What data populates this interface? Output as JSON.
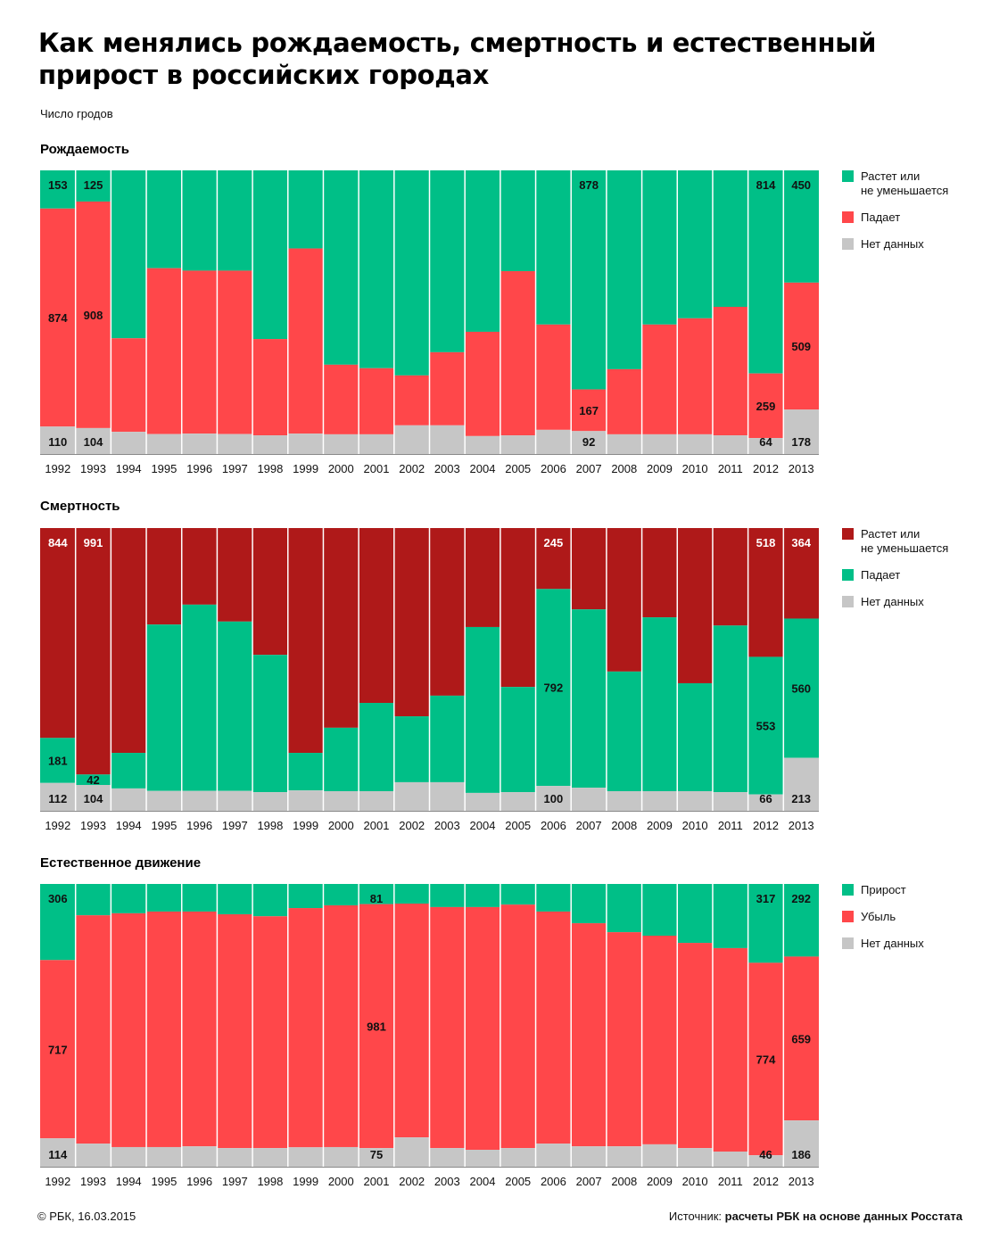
{
  "title": "Как менялись рождаемость, смертность и естественный прирост в российских городах",
  "title_lines": [
    "Как менялись рождаемость, смертность и естественный",
    "прирост в российских городах"
  ],
  "subtitle": "Число гродов",
  "footer": {
    "copyright": "© РБК, 16.03.2015",
    "source_label": "Источник: ",
    "source_text": "расчеты РБК на основе данных Росстата"
  },
  "colors": {
    "green": "#00BF87",
    "red": "#FF474A",
    "darkred": "#AF1919",
    "gray": "#C6C6C6"
  },
  "chart_data": [
    {
      "type": "bar",
      "stacked": true,
      "title": "Рождаемость",
      "xlabel": "",
      "ylabel": "Число гродов",
      "ylim": [
        0,
        1137
      ],
      "legend_position": "right",
      "categories": [
        "1992",
        "1993",
        "1994",
        "1995",
        "1996",
        "1997",
        "1998",
        "1999",
        "2000",
        "2001",
        "2002",
        "2003",
        "2004",
        "2005",
        "2006",
        "2007",
        "2008",
        "2009",
        "2010",
        "2011",
        "2012",
        "2013"
      ],
      "series": [
        {
          "name": "Растет или не уменьшается",
          "color": "green",
          "position": "top",
          "values": [
            153,
            125,
            673,
            392,
            402,
            402,
            676,
            313,
            779,
            793,
            822,
            729,
            647,
            404,
            618,
            878,
            797,
            618,
            593,
            547,
            814,
            450
          ],
          "labeled": [
            true,
            true,
            false,
            false,
            false,
            false,
            false,
            false,
            false,
            false,
            false,
            false,
            false,
            false,
            false,
            true,
            false,
            false,
            false,
            false,
            true,
            true
          ]
        },
        {
          "name": "Падает",
          "color": "red",
          "position": "middle",
          "values": [
            874,
            908,
            375,
            665,
            653,
            655,
            386,
            742,
            279,
            265,
            200,
            293,
            418,
            658,
            422,
            167,
            261,
            440,
            465,
            515,
            259,
            509
          ],
          "labeled": [
            true,
            true,
            false,
            false,
            false,
            false,
            false,
            false,
            false,
            false,
            false,
            false,
            false,
            false,
            false,
            true,
            false,
            false,
            false,
            false,
            true,
            true
          ]
        },
        {
          "name": "Нет данных",
          "color": "gray",
          "position": "bottom",
          "values": [
            110,
            104,
            89,
            80,
            82,
            80,
            75,
            82,
            79,
            79,
            115,
            115,
            72,
            75,
            97,
            92,
            79,
            79,
            79,
            75,
            64,
            178
          ],
          "labeled": [
            true,
            true,
            false,
            false,
            false,
            false,
            false,
            false,
            false,
            false,
            false,
            false,
            false,
            false,
            false,
            true,
            false,
            false,
            false,
            false,
            true,
            true
          ]
        }
      ],
      "legend": [
        {
          "lines": [
            "Растет или",
            "не уменьшается"
          ],
          "color": "green"
        },
        {
          "lines": [
            "Падает"
          ],
          "color": "red"
        },
        {
          "lines": [
            "Нет данных"
          ],
          "color": "gray"
        }
      ]
    },
    {
      "type": "bar",
      "stacked": true,
      "title": "Смертность",
      "xlabel": "",
      "ylabel": "Число гродов",
      "ylim": [
        0,
        1137
      ],
      "legend_position": "right",
      "categories": [
        "1992",
        "1993",
        "1994",
        "1995",
        "1996",
        "1997",
        "1998",
        "1999",
        "2000",
        "2001",
        "2002",
        "2003",
        "2004",
        "2005",
        "2006",
        "2007",
        "2008",
        "2009",
        "2010",
        "2011",
        "2012",
        "2013"
      ],
      "series": [
        {
          "name": "Растет или не уменьшается",
          "color": "darkred",
          "position": "top",
          "label_color": "#ffffff",
          "values": [
            844,
            991,
            904,
            388,
            308,
            376,
            510,
            904,
            803,
            703,
            757,
            674,
            398,
            639,
            245,
            327,
            577,
            359,
            624,
            392,
            518,
            364
          ],
          "labeled": [
            true,
            true,
            false,
            false,
            false,
            false,
            false,
            false,
            false,
            false,
            false,
            false,
            false,
            false,
            true,
            false,
            false,
            false,
            false,
            false,
            true,
            true
          ]
        },
        {
          "name": "Падает",
          "color": "green",
          "position": "middle",
          "values": [
            181,
            42,
            143,
            669,
            749,
            681,
            552,
            151,
            255,
            355,
            265,
            348,
            667,
            423,
            792,
            717,
            481,
            699,
            434,
            670,
            553,
            560
          ],
          "labeled": [
            true,
            true,
            false,
            false,
            false,
            false,
            false,
            false,
            false,
            false,
            false,
            false,
            false,
            false,
            true,
            false,
            false,
            false,
            false,
            false,
            true,
            true
          ]
        },
        {
          "name": "Нет данных",
          "color": "gray",
          "position": "bottom",
          "values": [
            112,
            104,
            90,
            80,
            80,
            80,
            75,
            82,
            79,
            79,
            115,
            115,
            72,
            75,
            100,
            93,
            79,
            79,
            79,
            75,
            66,
            213
          ],
          "labeled": [
            true,
            true,
            false,
            false,
            false,
            false,
            false,
            false,
            false,
            false,
            false,
            false,
            false,
            false,
            true,
            false,
            false,
            false,
            false,
            false,
            true,
            true
          ]
        }
      ],
      "legend": [
        {
          "lines": [
            "Растет или",
            "не уменьшается"
          ],
          "color": "darkred"
        },
        {
          "lines": [
            "Падает"
          ],
          "color": "green"
        },
        {
          "lines": [
            "Нет данных"
          ],
          "color": "gray"
        }
      ]
    },
    {
      "type": "bar",
      "stacked": true,
      "title": "Естественное движение",
      "xlabel": "",
      "ylabel": "Число гродов",
      "ylim": [
        0,
        1137
      ],
      "legend_position": "right",
      "categories": [
        "1992",
        "1993",
        "1994",
        "1995",
        "1996",
        "1997",
        "1998",
        "1999",
        "2000",
        "2001",
        "2002",
        "2003",
        "2004",
        "2005",
        "2006",
        "2007",
        "2008",
        "2009",
        "2010",
        "2011",
        "2012",
        "2013"
      ],
      "series": [
        {
          "name": "Прирост",
          "color": "green",
          "position": "top",
          "values": [
            306,
            126,
            118,
            111,
            111,
            122,
            130,
            97,
            86,
            81,
            79,
            93,
            93,
            83,
            111,
            158,
            194,
            208,
            237,
            258,
            317,
            292
          ],
          "labeled": [
            true,
            false,
            false,
            false,
            false,
            false,
            false,
            false,
            false,
            true,
            false,
            false,
            false,
            false,
            false,
            false,
            false,
            false,
            false,
            false,
            true,
            true
          ]
        },
        {
          "name": "Убыль",
          "color": "red",
          "position": "middle",
          "values": [
            717,
            918,
            940,
            947,
            944,
            940,
            932,
            962,
            972,
            981,
            940,
            969,
            976,
            979,
            933,
            897,
            861,
            839,
            825,
            818,
            774,
            659
          ],
          "labeled": [
            true,
            false,
            false,
            false,
            false,
            false,
            false,
            false,
            false,
            true,
            false,
            false,
            false,
            false,
            false,
            false,
            false,
            false,
            false,
            false,
            true,
            true
          ]
        },
        {
          "name": "Нет данных",
          "color": "gray",
          "position": "bottom",
          "values": [
            114,
            93,
            79,
            79,
            82,
            75,
            75,
            78,
            79,
            75,
            118,
            75,
            68,
            75,
            93,
            82,
            82,
            90,
            75,
            61,
            46,
            186
          ],
          "labeled": [
            true,
            false,
            false,
            false,
            false,
            false,
            false,
            false,
            false,
            true,
            false,
            false,
            false,
            false,
            false,
            false,
            false,
            false,
            false,
            false,
            true,
            true
          ]
        }
      ],
      "legend": [
        {
          "lines": [
            "Прирост"
          ],
          "color": "green"
        },
        {
          "lines": [
            "Убыль"
          ],
          "color": "red"
        },
        {
          "lines": [
            "Нет данных"
          ],
          "color": "gray"
        }
      ]
    }
  ]
}
